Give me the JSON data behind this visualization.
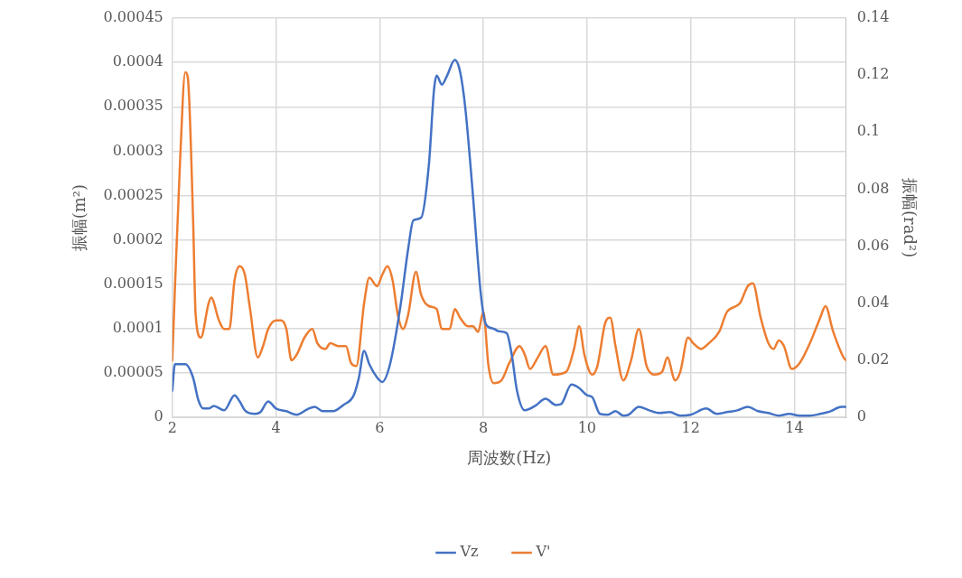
{
  "chart_data": {
    "type": "line",
    "xlabel": "周波数(Hz)",
    "ylabel": "振幅(m²)",
    "y2label": "振幅(rad²)",
    "xlim": [
      2,
      15
    ],
    "xticks": [
      2,
      4,
      6,
      8,
      10,
      12,
      14
    ],
    "ylim": [
      0,
      0.00045
    ],
    "yticks": [
      0,
      {
        "value": 5e-05,
        "label": "0.00005"
      },
      0.0001,
      0.00015,
      0.0002,
      0.00025,
      0.0003,
      0.00035,
      0.0004,
      0.00045
    ],
    "y2lim": [
      0,
      0.14
    ],
    "y2ticks": [
      0,
      0.02,
      0.04,
      0.06,
      0.08,
      0.1,
      0.12,
      0.14
    ],
    "grid": true,
    "legend": "bottom",
    "marker": "none",
    "line_style": "solid",
    "series": [
      {
        "name": "Vz",
        "color": "#4472c4",
        "x": [
          2.0,
          2.05,
          2.25,
          2.4,
          2.5,
          2.6,
          2.7,
          2.8,
          3.0,
          3.2,
          3.3,
          3.4,
          3.6,
          3.7,
          3.85,
          4.0,
          4.2,
          4.4,
          4.6,
          4.75,
          4.9,
          5.1,
          5.3,
          5.5,
          5.6,
          5.7,
          5.8,
          5.95,
          6.05,
          6.2,
          6.4,
          6.55,
          6.65,
          6.8,
          6.95,
          7.05,
          7.1,
          7.2,
          7.3,
          7.45,
          7.55,
          7.65,
          7.8,
          7.95,
          8.05,
          8.2,
          8.3,
          8.45,
          8.55,
          8.65,
          8.8,
          9.0,
          9.2,
          9.4,
          9.5,
          9.7,
          9.85,
          10.0,
          10.1,
          10.25,
          10.4,
          10.55,
          10.7,
          10.8,
          11.0,
          11.2,
          11.4,
          11.6,
          11.8,
          12.0,
          12.3,
          12.5,
          12.7,
          12.9,
          13.1,
          13.3,
          13.5,
          13.7,
          13.9,
          14.1,
          14.3,
          14.5,
          14.7,
          14.9,
          15.0
        ],
        "values": [
          3e-05,
          6e-05,
          6e-05,
          4.5e-05,
          2e-05,
          1e-05,
          1e-05,
          1.3e-05,
          8e-06,
          2.5e-05,
          1.8e-05,
          8e-06,
          4e-06,
          6e-06,
          1.8e-05,
          1e-05,
          7e-06,
          3e-06,
          9e-06,
          1.2e-05,
          7e-06,
          7e-06,
          1.4e-05,
          2.5e-05,
          4.5e-05,
          7.5e-05,
          6e-05,
          4.5e-05,
          4e-05,
          6e-05,
          0.000125,
          0.00019,
          0.000222,
          0.000225,
          0.000285,
          0.00037,
          0.000385,
          0.000375,
          0.000385,
          0.000403,
          0.00039,
          0.00035,
          0.00025,
          0.00014,
          0.000105,
          0.0001,
          9.7e-05,
          9.5e-05,
          7e-05,
          3e-05,
          8e-06,
          1.3e-05,
          2.1e-05,
          1.4e-05,
          1.5e-05,
          3.7e-05,
          3.3e-05,
          2.5e-05,
          2.3e-05,
          4e-06,
          3e-06,
          7e-06,
          2e-06,
          3e-06,
          1.2e-05,
          8e-06,
          5e-06,
          6e-06,
          2e-06,
          3e-06,
          1e-05,
          4e-06,
          6e-06,
          8e-06,
          1.2e-05,
          7e-06,
          5e-06,
          2e-06,
          4e-06,
          2e-06,
          2e-06,
          4e-06,
          7e-06,
          1.2e-05,
          1.2e-05
        ]
      },
      {
        "name": "V'",
        "color": "#ed7d31",
        "axis": "y2",
        "x": [
          2.0,
          2.05,
          2.15,
          2.25,
          2.3,
          2.4,
          2.45,
          2.55,
          2.7,
          2.75,
          2.9,
          3.0,
          3.1,
          3.2,
          3.3,
          3.4,
          3.5,
          3.65,
          3.75,
          3.85,
          4.0,
          4.1,
          4.2,
          4.3,
          4.4,
          4.55,
          4.7,
          4.8,
          4.95,
          5.05,
          5.2,
          5.35,
          5.45,
          5.55,
          5.7,
          5.8,
          5.95,
          6.05,
          6.15,
          6.25,
          6.35,
          6.45,
          6.55,
          6.7,
          6.8,
          6.95,
          7.1,
          7.2,
          7.35,
          7.45,
          7.55,
          7.7,
          7.8,
          7.9,
          8.0,
          8.1,
          8.2,
          8.35,
          8.5,
          8.7,
          8.8,
          8.9,
          9.05,
          9.2,
          9.35,
          9.6,
          9.75,
          9.85,
          9.95,
          10.1,
          10.2,
          10.35,
          10.45,
          10.55,
          10.7,
          10.85,
          11.0,
          11.15,
          11.3,
          11.45,
          11.55,
          11.7,
          11.8,
          11.95,
          12.05,
          12.2,
          12.35,
          12.55,
          12.7,
          12.95,
          13.1,
          13.2,
          13.35,
          13.5,
          13.6,
          13.7,
          13.8,
          13.95,
          14.1,
          14.3,
          14.5,
          14.6,
          14.75,
          14.95,
          15.0
        ],
        "values": [
          0.02,
          0.045,
          0.09,
          0.121,
          0.119,
          0.07,
          0.036,
          0.028,
          0.04,
          0.042,
          0.034,
          0.031,
          0.031,
          0.048,
          0.053,
          0.05,
          0.038,
          0.021,
          0.025,
          0.031,
          0.034,
          0.034,
          0.031,
          0.02,
          0.022,
          0.028,
          0.031,
          0.026,
          0.024,
          0.026,
          0.025,
          0.025,
          0.019,
          0.018,
          0.04,
          0.049,
          0.046,
          0.05,
          0.053,
          0.048,
          0.036,
          0.031,
          0.036,
          0.051,
          0.043,
          0.039,
          0.038,
          0.031,
          0.031,
          0.038,
          0.035,
          0.032,
          0.032,
          0.03,
          0.037,
          0.018,
          0.012,
          0.013,
          0.019,
          0.025,
          0.022,
          0.017,
          0.021,
          0.025,
          0.015,
          0.016,
          0.024,
          0.032,
          0.022,
          0.015,
          0.018,
          0.033,
          0.035,
          0.025,
          0.013,
          0.02,
          0.031,
          0.018,
          0.015,
          0.016,
          0.021,
          0.013,
          0.016,
          0.028,
          0.026,
          0.024,
          0.026,
          0.03,
          0.037,
          0.04,
          0.046,
          0.047,
          0.035,
          0.026,
          0.024,
          0.027,
          0.025,
          0.017,
          0.019,
          0.026,
          0.035,
          0.039,
          0.03,
          0.021,
          0.02
        ]
      }
    ]
  }
}
